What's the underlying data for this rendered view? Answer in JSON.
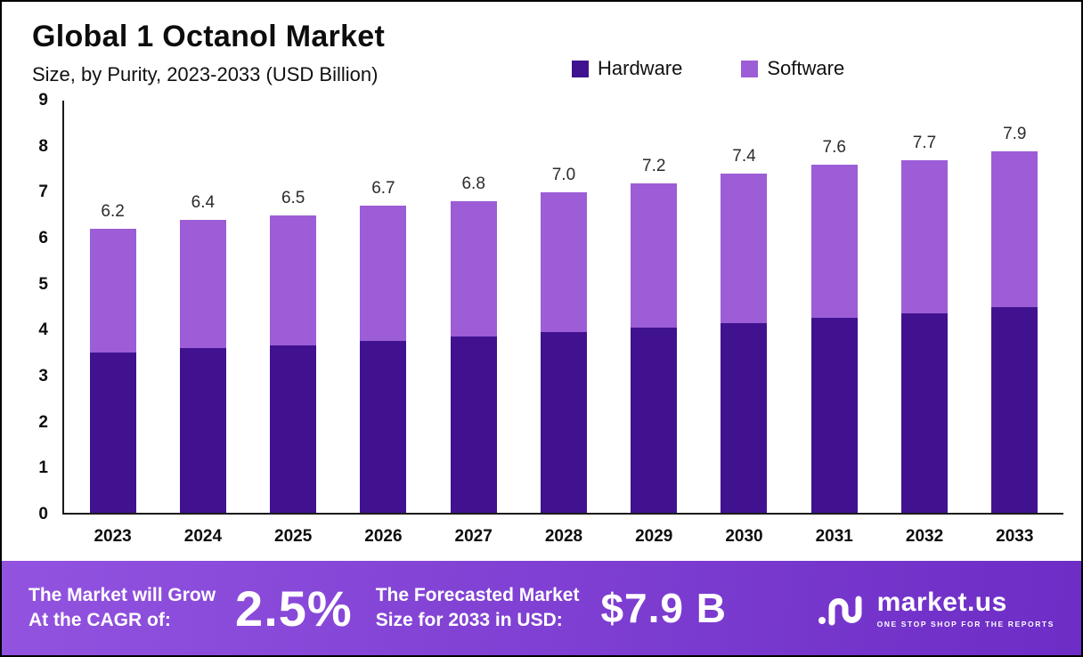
{
  "header": {
    "title": "Global 1 Octanol Market",
    "subtitle": "Size, by Purity, 2023-2033 (USD Billion)"
  },
  "legend": [
    {
      "label": "Hardware",
      "color": "#40128f"
    },
    {
      "label": "Software",
      "color": "#9c5dd6"
    }
  ],
  "chart_data": {
    "type": "bar",
    "stacked": true,
    "categories": [
      "2023",
      "2024",
      "2025",
      "2026",
      "2027",
      "2028",
      "2029",
      "2030",
      "2031",
      "2032",
      "2033"
    ],
    "series": [
      {
        "name": "Hardware",
        "color": "#40128f",
        "values": [
          3.5,
          3.6,
          3.65,
          3.75,
          3.85,
          3.95,
          4.05,
          4.15,
          4.25,
          4.35,
          4.5
        ]
      },
      {
        "name": "Software",
        "color": "#9c5dd6",
        "values": [
          2.7,
          2.8,
          2.85,
          2.95,
          2.95,
          3.05,
          3.15,
          3.25,
          3.35,
          3.35,
          3.4
        ]
      }
    ],
    "totals": [
      "6.2",
      "6.4",
      "6.5",
      "6.7",
      "6.8",
      "7.0",
      "7.2",
      "7.4",
      "7.6",
      "7.7",
      "7.9"
    ],
    "title": "Global 1 Octanol Market",
    "subtitle": "Size, by Purity, 2023-2033 (USD Billion)",
    "xlabel": "",
    "ylabel": "",
    "ylim": [
      0,
      9
    ],
    "yticks": [
      0,
      1,
      2,
      3,
      4,
      5,
      6,
      7,
      8,
      9
    ],
    "grid": false,
    "legend_position": "top-right"
  },
  "footer": {
    "banner_gradient_start": "#9253e0",
    "banner_gradient_end": "#6d2dc6",
    "cagr_label": "The Market will Grow\nAt the CAGR of:",
    "cagr_value": "2.5%",
    "forecast_label": "The Forecasted Market\nSize for 2033 in USD:",
    "forecast_value": "$7.9 B",
    "brand": "market.us",
    "brand_tagline": "ONE STOP SHOP FOR THE REPORTS"
  }
}
